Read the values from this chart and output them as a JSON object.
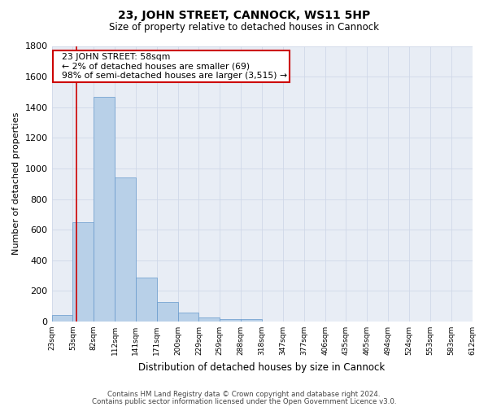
{
  "title1": "23, JOHN STREET, CANNOCK, WS11 5HP",
  "title2": "Size of property relative to detached houses in Cannock",
  "xlabel": "Distribution of detached houses by size in Cannock",
  "ylabel": "Number of detached properties",
  "bar_values": [
    40,
    650,
    1470,
    940,
    285,
    125,
    60,
    25,
    15,
    15,
    0,
    0,
    0,
    0,
    0,
    0,
    0,
    0,
    0,
    0
  ],
  "bin_labels": [
    "23sqm",
    "53sqm",
    "82sqm",
    "112sqm",
    "141sqm",
    "171sqm",
    "200sqm",
    "229sqm",
    "259sqm",
    "288sqm",
    "318sqm",
    "347sqm",
    "377sqm",
    "406sqm",
    "435sqm",
    "465sqm",
    "494sqm",
    "524sqm",
    "553sqm",
    "583sqm",
    "612sqm"
  ],
  "bar_color": "#b8d0e8",
  "bar_edge_color": "#6699cc",
  "grid_color": "#d0d8e8",
  "bg_color": "#e8edf5",
  "red_line_x": 1.17,
  "annotation_text": "  23 JOHN STREET: 58sqm\n  ← 2% of detached houses are smaller (69)\n  98% of semi-detached houses are larger (3,515) →",
  "annotation_box_color": "#ffffff",
  "annotation_box_edge": "#cc0000",
  "ylim": [
    0,
    1800
  ],
  "yticks": [
    0,
    200,
    400,
    600,
    800,
    1000,
    1200,
    1400,
    1600,
    1800
  ],
  "footer1": "Contains HM Land Registry data © Crown copyright and database right 2024.",
  "footer2": "Contains public sector information licensed under the Open Government Licence v3.0."
}
